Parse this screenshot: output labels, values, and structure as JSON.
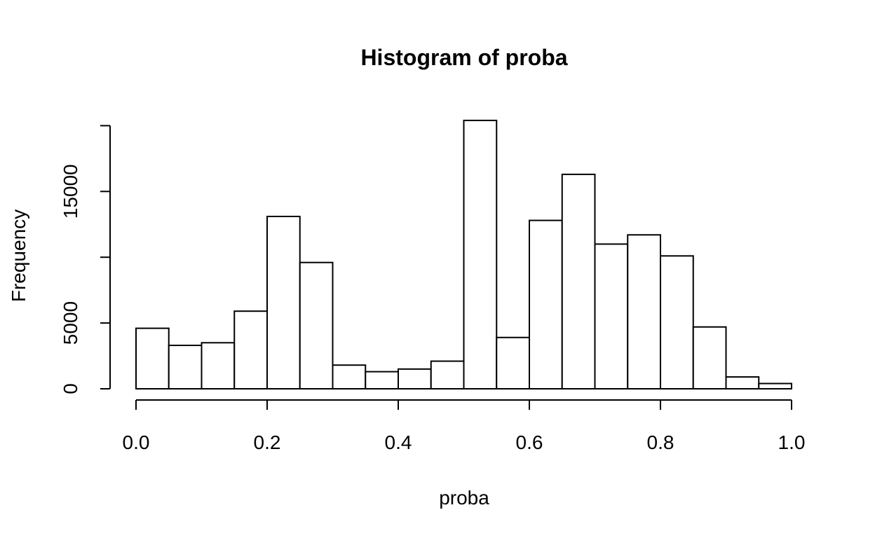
{
  "chart_data": {
    "type": "bar",
    "title": "Histogram of proba",
    "xlabel": "proba",
    "ylabel": "Frequency",
    "bin_edges": [
      0.0,
      0.05,
      0.1,
      0.15,
      0.2,
      0.25,
      0.3,
      0.35,
      0.4,
      0.45,
      0.5,
      0.55,
      0.6,
      0.65,
      0.7,
      0.75,
      0.8,
      0.85,
      0.9,
      0.95,
      1.0
    ],
    "values": [
      4600,
      3300,
      3500,
      5900,
      13100,
      9600,
      1800,
      1300,
      1500,
      2100,
      20400,
      3900,
      12800,
      16300,
      11000,
      11700,
      10100,
      4700,
      900,
      400
    ],
    "xlim": [
      0.0,
      1.0
    ],
    "ylim": [
      0,
      20000
    ],
    "x_ticks": [
      0.0,
      0.2,
      0.4,
      0.6,
      0.8,
      1.0
    ],
    "x_tick_labels": [
      "0.0",
      "0.2",
      "0.4",
      "0.6",
      "0.8",
      "1.0"
    ],
    "y_ticks": [
      0,
      5000,
      10000,
      15000,
      20000
    ],
    "y_tick_labels": [
      "0",
      "5000",
      "",
      "15000",
      ""
    ],
    "grid": false,
    "bar_fill": "#ffffff",
    "bar_stroke": "#000000"
  }
}
